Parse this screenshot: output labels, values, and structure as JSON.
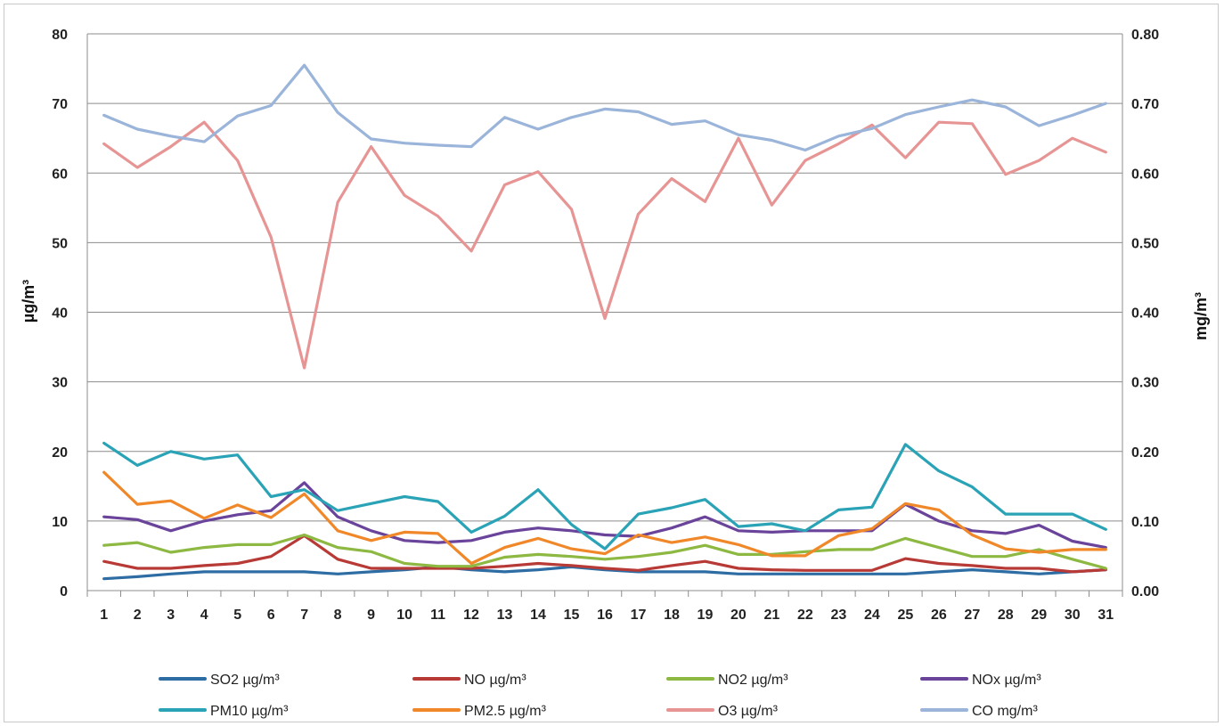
{
  "chart_data": {
    "type": "line",
    "title": "",
    "xlabel": "",
    "ylabel": "µg/m³",
    "y2label": "mg/m³",
    "ylim": [
      0,
      80
    ],
    "y2lim": [
      0,
      0.8
    ],
    "yticks": [
      "0",
      "10",
      "20",
      "30",
      "40",
      "50",
      "60",
      "70",
      "80"
    ],
    "y2ticks": [
      "0.00",
      "0.10",
      "0.20",
      "0.30",
      "0.40",
      "0.50",
      "0.60",
      "0.70",
      "0.80"
    ],
    "x": [
      "1",
      "2",
      "3",
      "4",
      "5",
      "6",
      "7",
      "8",
      "9",
      "10",
      "11",
      "12",
      "13",
      "14",
      "15",
      "16",
      "17",
      "18",
      "19",
      "20",
      "21",
      "22",
      "23",
      "24",
      "25",
      "26",
      "27",
      "28",
      "29",
      "30",
      "31"
    ],
    "grid": true,
    "legend_position": "bottom",
    "series": [
      {
        "name": "SO2 µg/m³",
        "axis": "left",
        "color": "#2e6da4",
        "values": [
          1.7,
          2.0,
          2.4,
          2.7,
          2.7,
          2.7,
          2.7,
          2.4,
          2.7,
          3.0,
          3.4,
          3.0,
          2.7,
          3.0,
          3.4,
          3.0,
          2.7,
          2.7,
          2.7,
          2.4,
          2.4,
          2.4,
          2.4,
          2.4,
          2.4,
          2.7,
          3.0,
          2.7,
          2.4,
          2.7,
          3.0
        ]
      },
      {
        "name": "NO µg/m³",
        "axis": "left",
        "color": "#b83a36",
        "values": [
          4.2,
          3.2,
          3.2,
          3.6,
          3.9,
          4.9,
          7.9,
          4.5,
          3.2,
          3.2,
          3.2,
          3.2,
          3.5,
          3.9,
          3.6,
          3.2,
          2.9,
          3.6,
          4.2,
          3.2,
          3.0,
          2.9,
          2.9,
          2.9,
          4.6,
          3.9,
          3.6,
          3.2,
          3.2,
          2.7,
          3.0
        ]
      },
      {
        "name": "NO2 µg/m³",
        "axis": "left",
        "color": "#8db943",
        "values": [
          6.5,
          6.9,
          5.5,
          6.2,
          6.6,
          6.6,
          8.0,
          6.2,
          5.6,
          3.9,
          3.5,
          3.5,
          4.8,
          5.2,
          4.9,
          4.5,
          4.9,
          5.5,
          6.5,
          5.2,
          5.2,
          5.6,
          5.9,
          5.9,
          7.5,
          6.2,
          4.9,
          4.9,
          5.9,
          4.5,
          3.2
        ]
      },
      {
        "name": "NOx µg/m³",
        "axis": "left",
        "color": "#6a449a",
        "values": [
          10.6,
          10.2,
          8.6,
          10.0,
          10.9,
          11.5,
          15.5,
          10.6,
          8.6,
          7.2,
          6.9,
          7.2,
          8.4,
          9.0,
          8.6,
          8.0,
          7.8,
          9.0,
          10.6,
          8.6,
          8.4,
          8.6,
          8.6,
          8.6,
          12.4,
          10.0,
          8.6,
          8.2,
          9.4,
          7.1,
          6.2
        ]
      },
      {
        "name": "PM10 µg/m³",
        "axis": "left",
        "color": "#2aa3b6",
        "values": [
          21.2,
          18.0,
          20.0,
          18.9,
          19.5,
          13.5,
          14.5,
          11.5,
          12.5,
          13.5,
          12.8,
          8.4,
          10.7,
          14.5,
          9.5,
          6.0,
          11.0,
          11.9,
          13.1,
          9.2,
          9.6,
          8.6,
          11.6,
          12.0,
          21.0,
          17.2,
          14.9,
          11.0,
          11.0,
          11.0,
          8.8
        ]
      },
      {
        "name": "PM2.5 µg/m³",
        "axis": "left",
        "color": "#f0882a",
        "values": [
          17.0,
          12.4,
          12.9,
          10.4,
          12.3,
          10.5,
          13.9,
          8.6,
          7.2,
          8.4,
          8.2,
          3.9,
          6.2,
          7.5,
          6.0,
          5.3,
          8.0,
          6.9,
          7.7,
          6.6,
          5.0,
          5.0,
          7.9,
          8.9,
          12.5,
          11.6,
          8.0,
          6.0,
          5.5,
          5.9,
          5.9
        ]
      },
      {
        "name": "O3 µg/m³",
        "axis": "left",
        "color": "#e79594",
        "values": [
          64.2,
          60.8,
          63.8,
          67.3,
          61.8,
          50.8,
          32.0,
          55.8,
          63.8,
          56.8,
          53.8,
          48.8,
          58.3,
          60.2,
          54.8,
          39.1,
          54.1,
          59.2,
          55.9,
          65.0,
          55.4,
          61.8,
          64.2,
          66.9,
          62.2,
          67.3,
          67.1,
          59.8,
          61.8,
          65.0,
          63.0
        ]
      },
      {
        "name": "CO mg/m³",
        "axis": "right",
        "color": "#9ab4da",
        "values": [
          0.683,
          0.663,
          0.653,
          0.645,
          0.682,
          0.697,
          0.755,
          0.687,
          0.649,
          0.643,
          0.64,
          0.638,
          0.68,
          0.663,
          0.68,
          0.692,
          0.688,
          0.67,
          0.675,
          0.655,
          0.647,
          0.633,
          0.653,
          0.664,
          0.684,
          0.695,
          0.705,
          0.695,
          0.668,
          0.683,
          0.7
        ]
      }
    ]
  }
}
